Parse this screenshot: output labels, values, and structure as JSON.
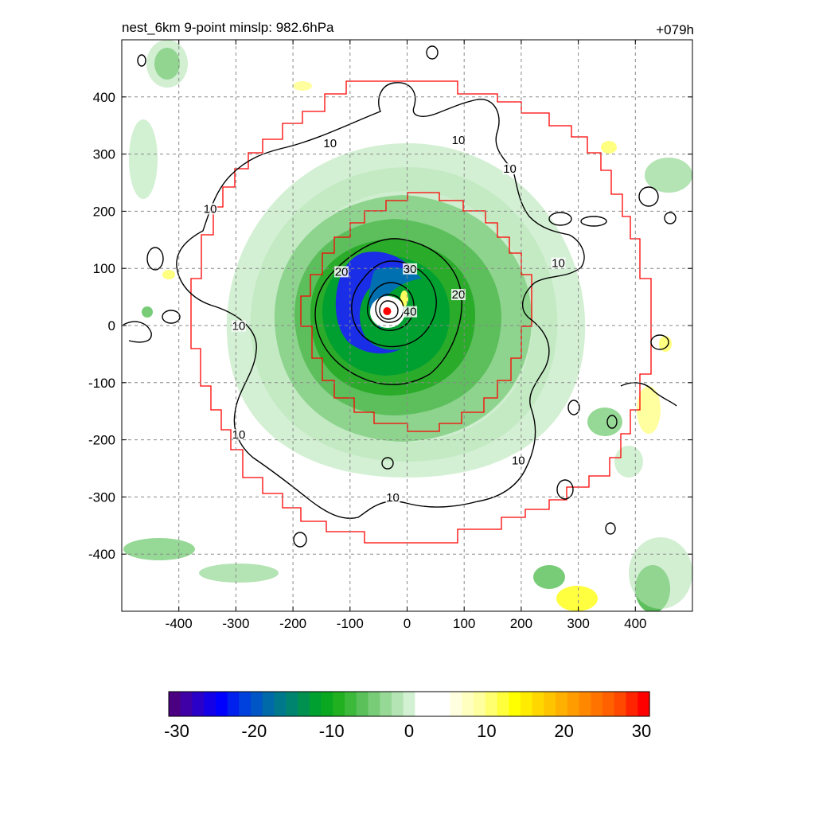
{
  "chart_data": {
    "type": "contour",
    "title": "nest_6km  9-point minslp: 982.6hPa",
    "forecast_hour": "+079h",
    "xlim": [
      -500,
      500
    ],
    "ylim": [
      -500,
      500
    ],
    "x_ticks": [
      -400,
      -300,
      -200,
      -100,
      0,
      100,
      200,
      300,
      400
    ],
    "y_ticks": [
      400,
      300,
      200,
      100,
      0,
      -100,
      -200,
      -300,
      -400
    ],
    "grid": true,
    "center_marker": {
      "x": -35,
      "y": 25,
      "color": "#ff0000"
    },
    "contour_levels": [
      10,
      20,
      30,
      40
    ],
    "contour_labels": [
      {
        "text": "10",
        "x": -135,
        "y": 315
      },
      {
        "text": "10",
        "x": 90,
        "y": 320
      },
      {
        "text": "10",
        "x": 180,
        "y": 270
      },
      {
        "text": "10",
        "x": -345,
        "y": 200
      },
      {
        "text": "10",
        "x": 265,
        "y": 105
      },
      {
        "text": "10",
        "x": -295,
        "y": -5
      },
      {
        "text": "10",
        "x": -295,
        "y": -195
      },
      {
        "text": "10",
        "x": -25,
        "y": -305
      },
      {
        "text": "10",
        "x": 195,
        "y": -240
      },
      {
        "text": "20",
        "x": -115,
        "y": 90
      },
      {
        "text": "20",
        "x": 90,
        "y": 50
      },
      {
        "text": "30",
        "x": 5,
        "y": 95
      },
      {
        "text": "40",
        "x": 5,
        "y": 20
      }
    ],
    "colorbar": {
      "min": -30,
      "max": 30,
      "tick_labels": [
        "-30",
        "-20",
        "-10",
        "0",
        "10",
        "20",
        "30"
      ],
      "colors": [
        "#4b0082",
        "#3f00a6",
        "#2a00c8",
        "#1400e6",
        "#0000ff",
        "#0020ee",
        "#0040dd",
        "#0056c4",
        "#006aa8",
        "#00788c",
        "#008470",
        "#009050",
        "#00a030",
        "#0aa820",
        "#20b020",
        "#3cb83a",
        "#5ac05a",
        "#78cc78",
        "#96d896",
        "#b4e4b4",
        "#d2f0d2",
        "#ffffff",
        "#ffffff",
        "#ffffff",
        "#ffffe0",
        "#ffffc0",
        "#ffffa0",
        "#ffff70",
        "#ffff3c",
        "#ffff00",
        "#ffec00",
        "#ffd800",
        "#ffc400",
        "#ffb000",
        "#ff9c00",
        "#ff8800",
        "#ff7400",
        "#ff6000",
        "#ff4800",
        "#ff2400",
        "#ff0000"
      ]
    }
  }
}
